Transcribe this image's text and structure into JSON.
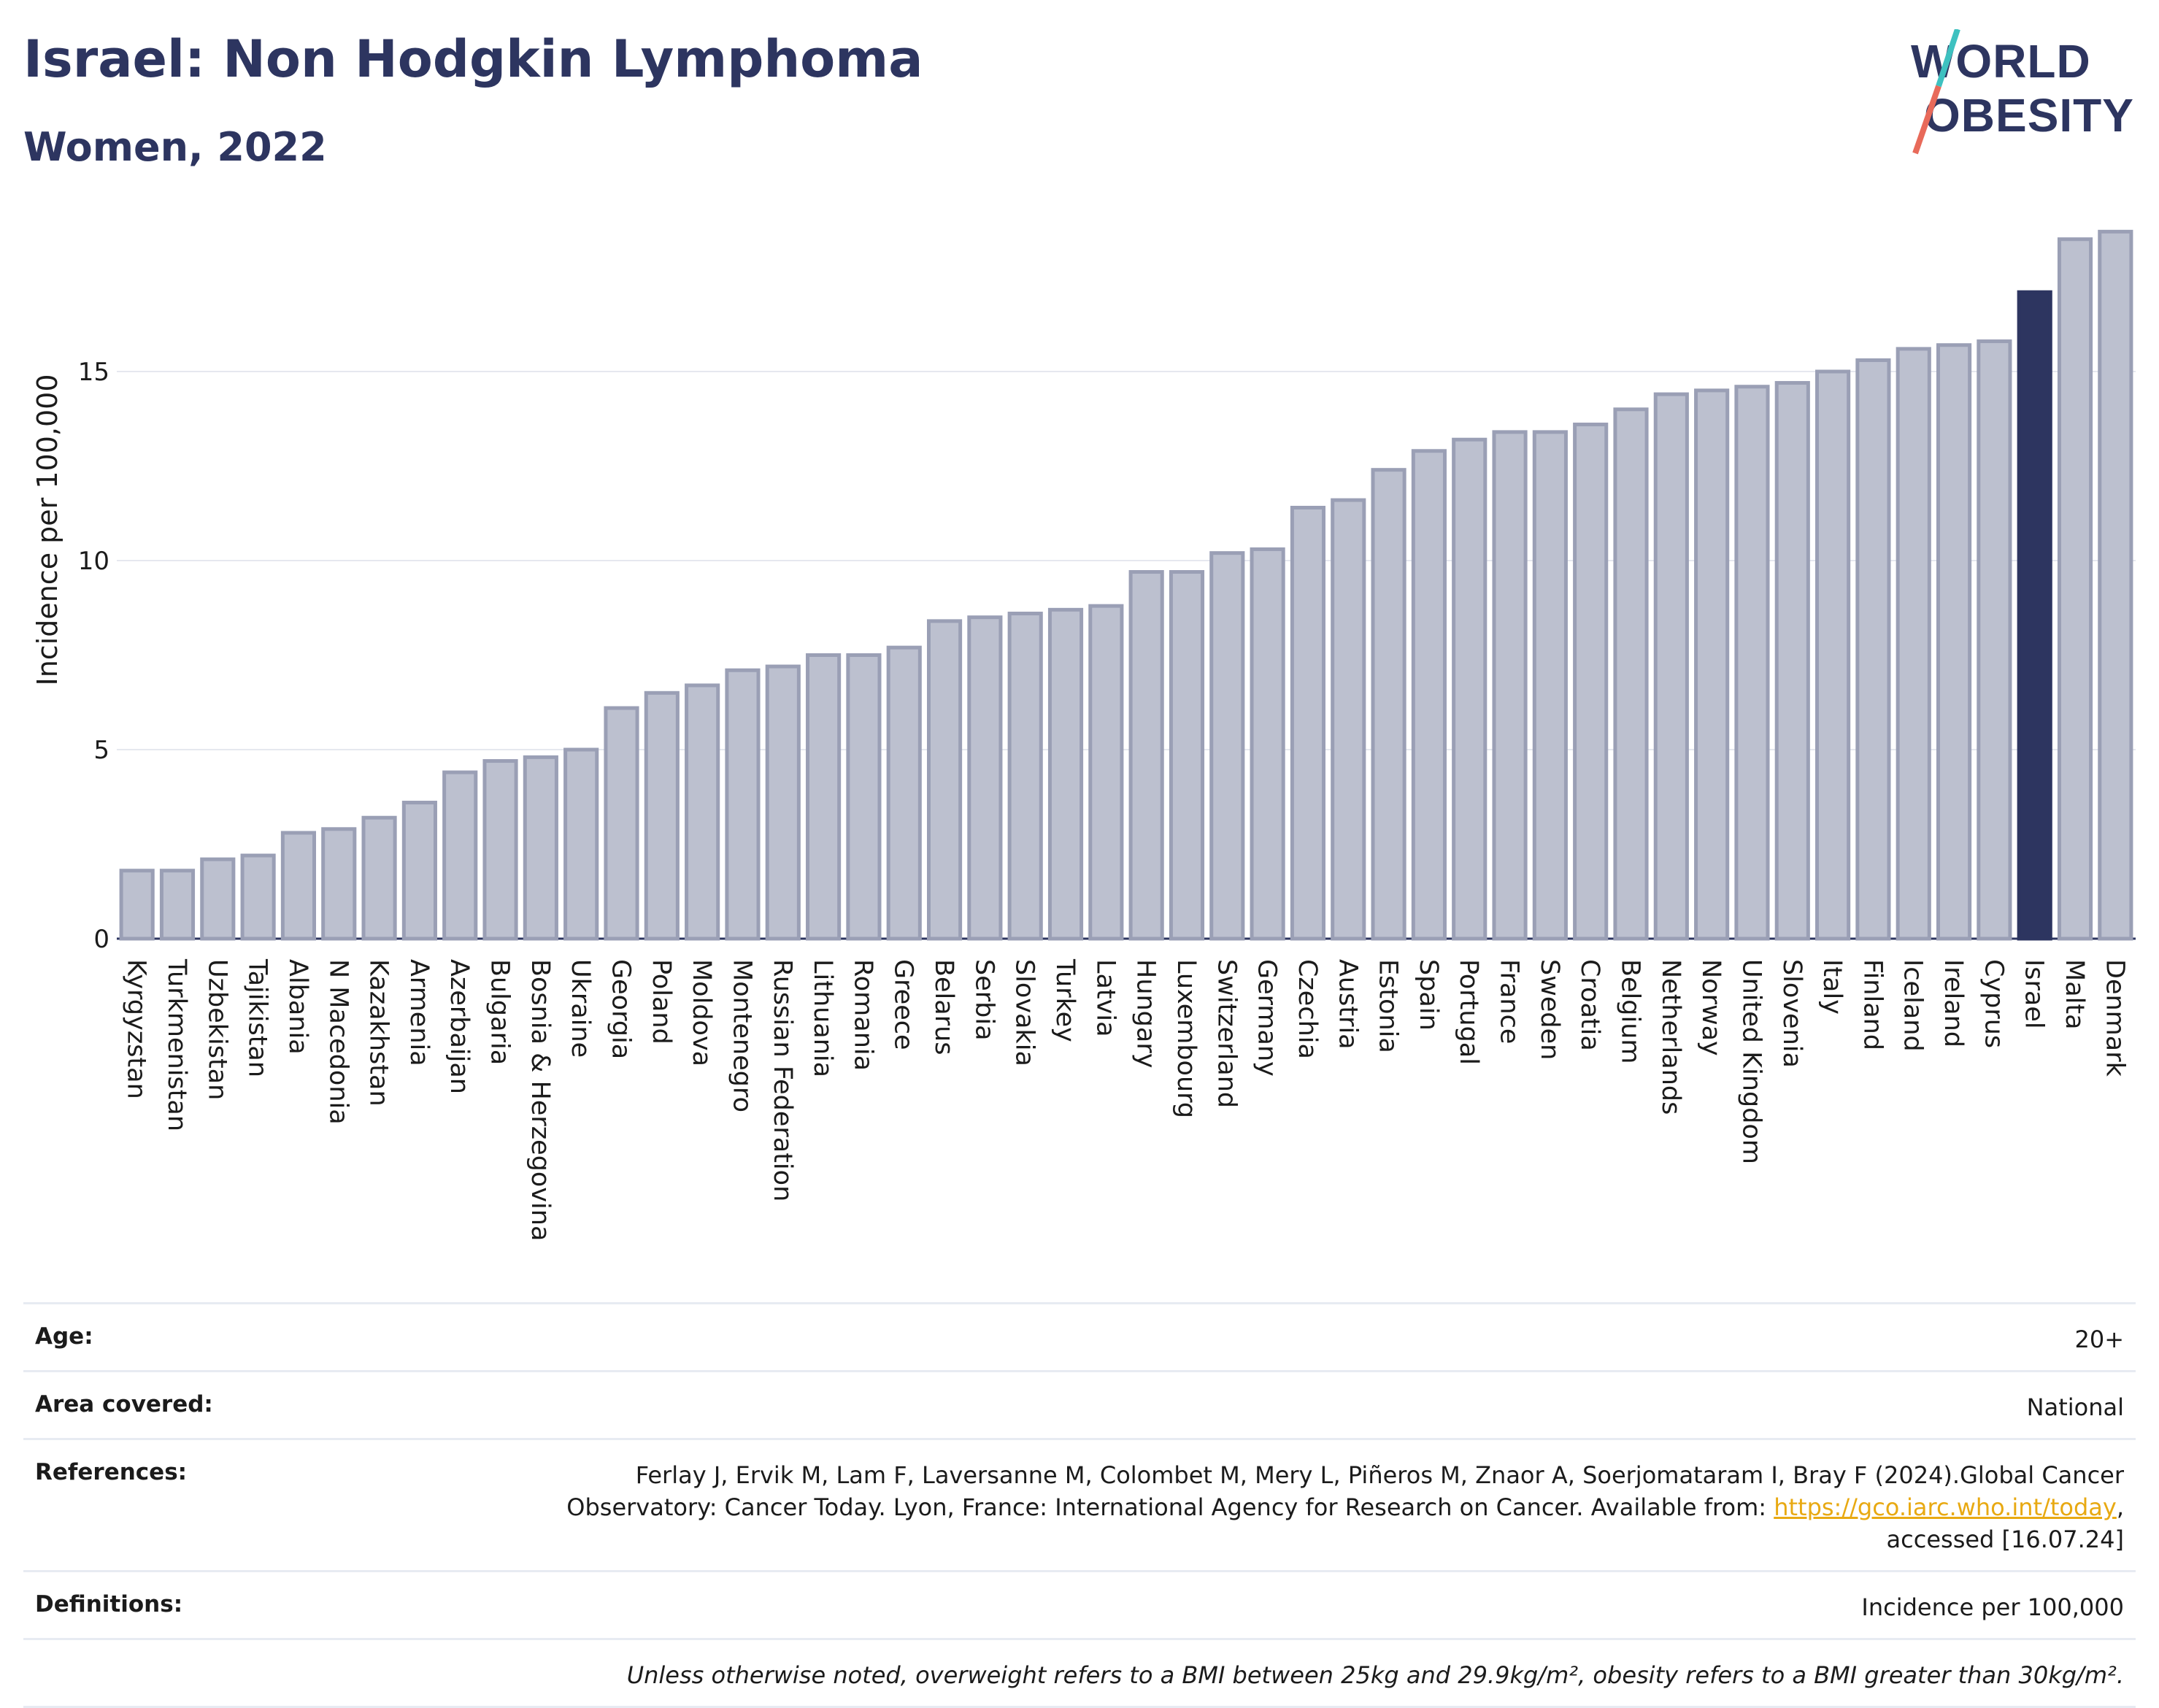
{
  "header": {
    "title": "Israel: Non Hodgkin Lymphoma",
    "subtitle": "Women, 2022"
  },
  "logo": {
    "line1": "WORLD",
    "line2": "OBESITY"
  },
  "colors": {
    "bar": "#bcc0cf",
    "bar_stroke": "#9a9fb5",
    "highlight": "#2d3560",
    "text": "#2d3560",
    "grid": "#e6e8ef",
    "logo_teal": "#3ec1c0",
    "logo_coral": "#e86a5a"
  },
  "chart_data": {
    "type": "bar",
    "ylabel": "Incidence per 100,000",
    "ylim": [
      0,
      19
    ],
    "yticks": [
      0,
      5,
      10,
      15
    ],
    "grid": true,
    "highlight": "Israel",
    "categories": [
      "Kyrgyzstan",
      "Turkmenistan",
      "Uzbekistan",
      "Tajikistan",
      "Albania",
      "N Macedonia",
      "Kazakhstan",
      "Armenia",
      "Azerbaijan",
      "Bulgaria",
      "Bosnia & Herzegovina",
      "Ukraine",
      "Georgia",
      "Poland",
      "Moldova",
      "Montenegro",
      "Russian Federation",
      "Lithuania",
      "Romania",
      "Greece",
      "Belarus",
      "Serbia",
      "Slovakia",
      "Turkey",
      "Latvia",
      "Hungary",
      "Luxembourg",
      "Switzerland",
      "Germany",
      "Czechia",
      "Austria",
      "Estonia",
      "Spain",
      "Portugal",
      "France",
      "Sweden",
      "Croatia",
      "Belgium",
      "Netherlands",
      "Norway",
      "United Kingdom",
      "Slovenia",
      "Italy",
      "Finland",
      "Iceland",
      "Ireland",
      "Cyprus",
      "Israel",
      "Malta",
      "Denmark"
    ],
    "values": [
      1.8,
      1.8,
      2.1,
      2.2,
      2.8,
      2.9,
      3.2,
      3.6,
      4.4,
      4.7,
      4.8,
      5.0,
      6.1,
      6.5,
      6.7,
      7.1,
      7.2,
      7.5,
      7.5,
      7.7,
      8.4,
      8.5,
      8.6,
      8.7,
      8.8,
      9.7,
      9.7,
      10.2,
      10.3,
      11.4,
      11.6,
      12.4,
      12.9,
      13.2,
      13.4,
      13.4,
      13.6,
      14.0,
      14.4,
      14.5,
      14.6,
      14.7,
      15.0,
      15.3,
      15.6,
      15.7,
      15.8,
      17.1,
      18.5,
      18.7
    ]
  },
  "info": {
    "age_label": "Age:",
    "age_value": "20+",
    "area_label": "Area covered:",
    "area_value": "National",
    "references_label": "References:",
    "references_text_1": "Ferlay J, Ervik M, Lam F, Laversanne M, Colombet M, Mery L, Piñeros M, Znaor A, Soerjomataram I, Bray F (2024).Global Cancer",
    "references_text_2": "Observatory: Cancer Today. Lyon, France: International Agency for Research on Cancer. Available from:",
    "references_link": "https://gco.iarc.who.int/today",
    "references_text_3": "accessed [16.07.24]",
    "definitions_label": "Definitions:",
    "definitions_value": "Incidence per 100,000",
    "note": "Unless otherwise noted, overweight refers to a BMI between 25kg and 29.9kg/m², obesity refers to a BMI greater than 30kg/m²."
  }
}
